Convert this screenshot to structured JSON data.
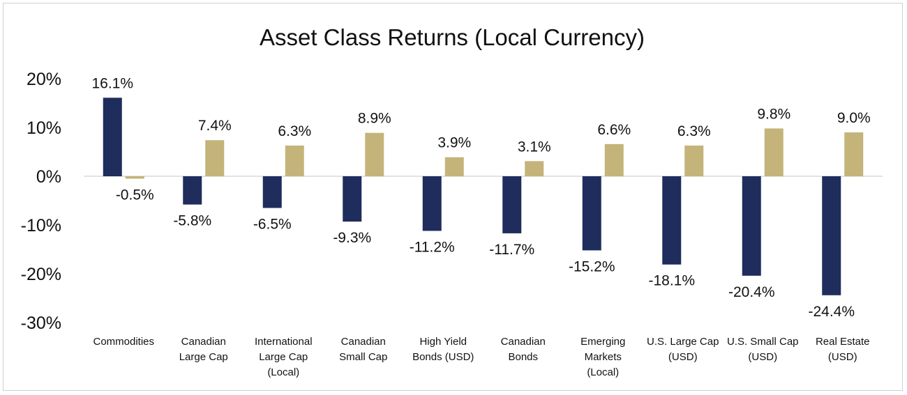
{
  "chart_data": {
    "type": "bar",
    "title": "Asset Class Returns (Local Currency)",
    "xlabel": "",
    "ylabel": "",
    "ylim": [
      -30,
      20
    ],
    "yticks": [
      20,
      10,
      0,
      -10,
      -20,
      -30
    ],
    "ytick_labels": [
      "20%",
      "10%",
      "0%",
      "-10%",
      "-20%",
      "-30%"
    ],
    "value_format": "%",
    "grid": false,
    "legend": null,
    "categories": [
      [
        "Commodities"
      ],
      [
        "Canadian",
        "Large Cap"
      ],
      [
        "International",
        "Large Cap",
        "(Local)"
      ],
      [
        "Canadian",
        "Small Cap"
      ],
      [
        "High Yield",
        "Bonds (USD)"
      ],
      [
        "Canadian",
        "Bonds"
      ],
      [
        "Emerging",
        "Markets",
        "(Local)"
      ],
      [
        "U.S. Large Cap",
        "(USD)"
      ],
      [
        "U.S. Small Cap",
        "(USD)"
      ],
      [
        "Real Estate",
        "(USD)"
      ]
    ],
    "series": [
      {
        "name": "Series 1",
        "color": "#1f2d5c",
        "values": [
          16.1,
          -5.8,
          -6.5,
          -9.3,
          -11.2,
          -11.7,
          -15.2,
          -18.1,
          -20.4,
          -24.4
        ],
        "labels": [
          "16.1%",
          "-5.8%",
          "-6.5%",
          "-9.3%",
          "-11.2%",
          "-11.7%",
          "-15.2%",
          "-18.1%",
          "-20.4%",
          "-24.4%"
        ]
      },
      {
        "name": "Series 2",
        "color": "#c4b47a",
        "values": [
          -0.5,
          7.4,
          6.3,
          8.9,
          3.9,
          3.1,
          6.6,
          6.3,
          9.8,
          9.0
        ],
        "labels": [
          "-0.5%",
          "7.4%",
          "6.3%",
          "8.9%",
          "3.9%",
          "3.1%",
          "6.6%",
          "6.3%",
          "9.8%",
          "9.0%"
        ]
      }
    ]
  }
}
